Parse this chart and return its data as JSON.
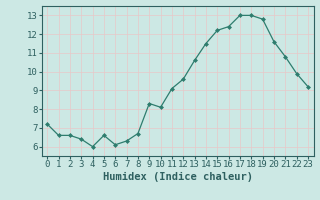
{
  "x": [
    0,
    1,
    2,
    3,
    4,
    5,
    6,
    7,
    8,
    9,
    10,
    11,
    12,
    13,
    14,
    15,
    16,
    17,
    18,
    19,
    20,
    21,
    22,
    23
  ],
  "y": [
    7.2,
    6.6,
    6.6,
    6.4,
    6.0,
    6.6,
    6.1,
    6.3,
    6.7,
    8.3,
    8.1,
    9.1,
    9.6,
    10.6,
    11.5,
    12.2,
    12.4,
    13.0,
    13.0,
    12.8,
    11.6,
    10.8,
    9.9,
    9.2
  ],
  "xlabel": "Humidex (Indice chaleur)",
  "xlim": [
    -0.5,
    23.5
  ],
  "ylim": [
    5.5,
    13.5
  ],
  "yticks": [
    6,
    7,
    8,
    9,
    10,
    11,
    12,
    13
  ],
  "xticks": [
    0,
    1,
    2,
    3,
    4,
    5,
    6,
    7,
    8,
    9,
    10,
    11,
    12,
    13,
    14,
    15,
    16,
    17,
    18,
    19,
    20,
    21,
    22,
    23
  ],
  "line_color": "#2e7d6e",
  "marker_color": "#2e7d6e",
  "bg_color": "#cce8e4",
  "grid_major_color": "#e8c8c8",
  "grid_minor_color": "#e8c8c8",
  "tick_fontsize": 6.5,
  "label_fontsize": 7.5
}
